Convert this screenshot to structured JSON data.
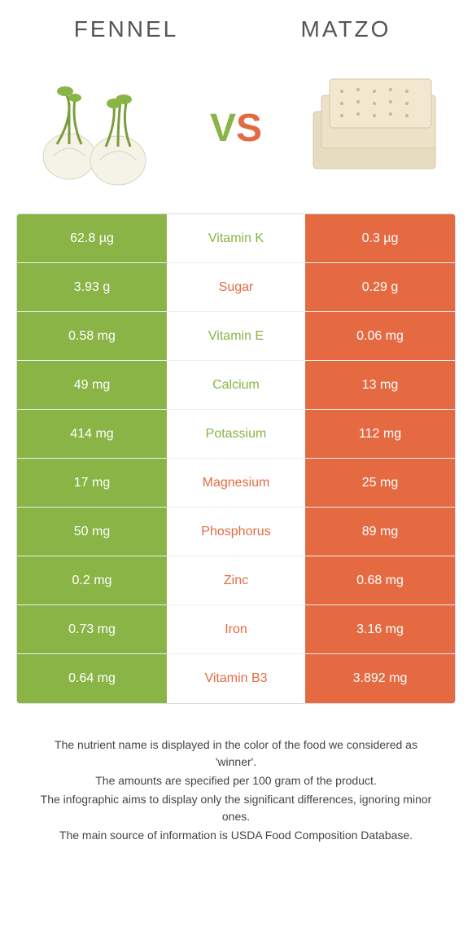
{
  "header": {
    "left_title": "FENNEL",
    "right_title": "MATZO"
  },
  "vs": {
    "v": "V",
    "s": "S"
  },
  "colors": {
    "green": "#8ab446",
    "orange": "#e56a42"
  },
  "rows": [
    {
      "left": "62.8 µg",
      "label": "Vitamin K",
      "right": "0.3 µg",
      "winner": "left"
    },
    {
      "left": "3.93 g",
      "label": "Sugar",
      "right": "0.29 g",
      "winner": "right"
    },
    {
      "left": "0.58 mg",
      "label": "Vitamin E",
      "right": "0.06 mg",
      "winner": "left"
    },
    {
      "left": "49 mg",
      "label": "Calcium",
      "right": "13 mg",
      "winner": "left"
    },
    {
      "left": "414 mg",
      "label": "Potassium",
      "right": "112 mg",
      "winner": "left"
    },
    {
      "left": "17 mg",
      "label": "Magnesium",
      "right": "25 mg",
      "winner": "right"
    },
    {
      "left": "50 mg",
      "label": "Phosphorus",
      "right": "89 mg",
      "winner": "right"
    },
    {
      "left": "0.2 mg",
      "label": "Zinc",
      "right": "0.68 mg",
      "winner": "right"
    },
    {
      "left": "0.73 mg",
      "label": "Iron",
      "right": "3.16 mg",
      "winner": "right"
    },
    {
      "left": "0.64 mg",
      "label": "Vitamin B3",
      "right": "3.892 mg",
      "winner": "right"
    }
  ],
  "footer": {
    "line1": "The nutrient name is displayed in the color of the food we considered as 'winner'.",
    "line2": "The amounts are specified per 100 gram of the product.",
    "line3": "The infographic aims to display only the significant differences, ignoring minor ones.",
    "line4": "The main source of information is USDA Food Composition Database."
  }
}
